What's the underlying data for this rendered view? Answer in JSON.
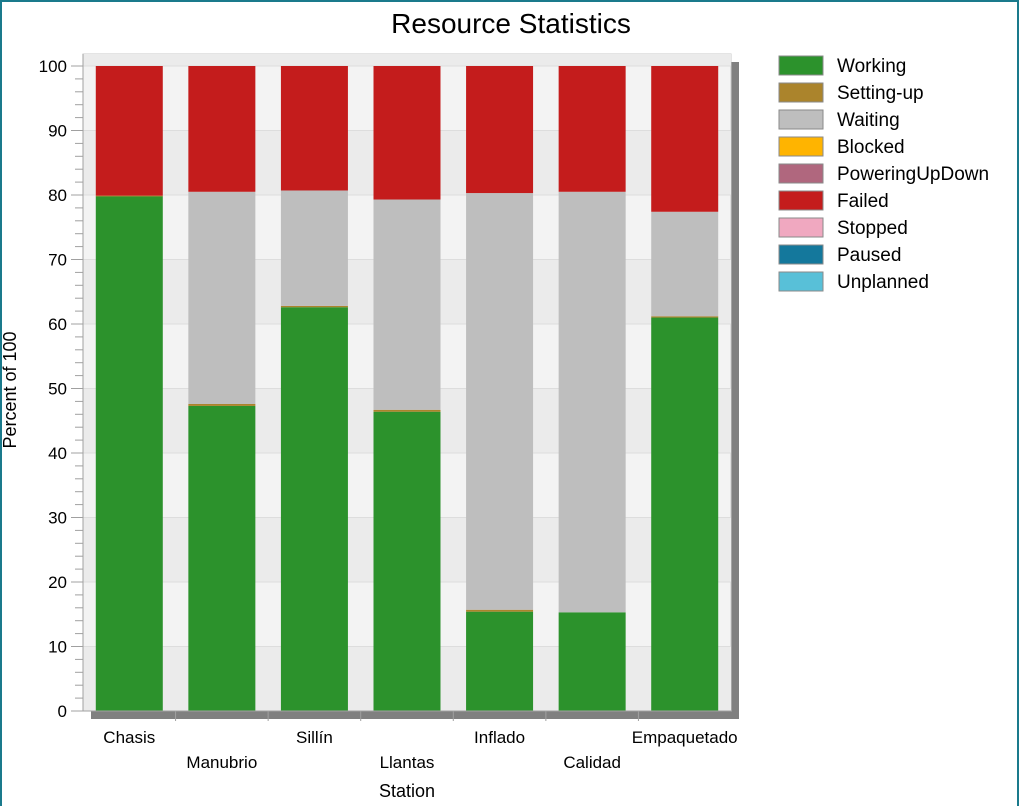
{
  "chart_data": {
    "type": "bar",
    "stacked": true,
    "title": "Resource Statistics",
    "xlabel": "Station",
    "ylabel": "Percent of 100",
    "ylim": [
      0,
      100
    ],
    "yticks": [
      0,
      10,
      20,
      30,
      40,
      50,
      60,
      70,
      80,
      90,
      100
    ],
    "categories": [
      "Chasis",
      "Manubrio",
      "Sillín",
      "Llantas",
      "Inflado",
      "Calidad",
      "Empaquetado"
    ],
    "series": [
      {
        "name": "Working",
        "color": "#2c922c",
        "values": [
          79.8,
          47.3,
          62.6,
          46.4,
          15.4,
          15.3,
          61.0
        ]
      },
      {
        "name": "Setting-up",
        "color": "#ab842c",
        "values": [
          0.1,
          0.3,
          0.2,
          0.3,
          0.3,
          0.0,
          0.2
        ]
      },
      {
        "name": "Waiting",
        "color": "#bebebe",
        "values": [
          0.0,
          32.9,
          17.9,
          32.6,
          64.6,
          65.2,
          16.2
        ]
      },
      {
        "name": "Blocked",
        "color": "#ffb400",
        "values": [
          0,
          0,
          0,
          0,
          0,
          0,
          0
        ]
      },
      {
        "name": "PoweringUpDown",
        "color": "#b0677e",
        "values": [
          0,
          0,
          0,
          0,
          0,
          0,
          0
        ]
      },
      {
        "name": "Failed",
        "color": "#c41c1c",
        "values": [
          20.1,
          19.5,
          19.3,
          20.7,
          19.7,
          19.5,
          22.6
        ]
      },
      {
        "name": "Stopped",
        "color": "#f0a8c0",
        "values": [
          0,
          0,
          0,
          0,
          0,
          0,
          0
        ]
      },
      {
        "name": "Paused",
        "color": "#14789c",
        "values": [
          0,
          0,
          0,
          0,
          0,
          0,
          0
        ]
      },
      {
        "name": "Unplanned",
        "color": "#58c0d8",
        "values": [
          0,
          0,
          0,
          0,
          0,
          0,
          0
        ]
      }
    ],
    "grid": true,
    "legend": "right"
  }
}
